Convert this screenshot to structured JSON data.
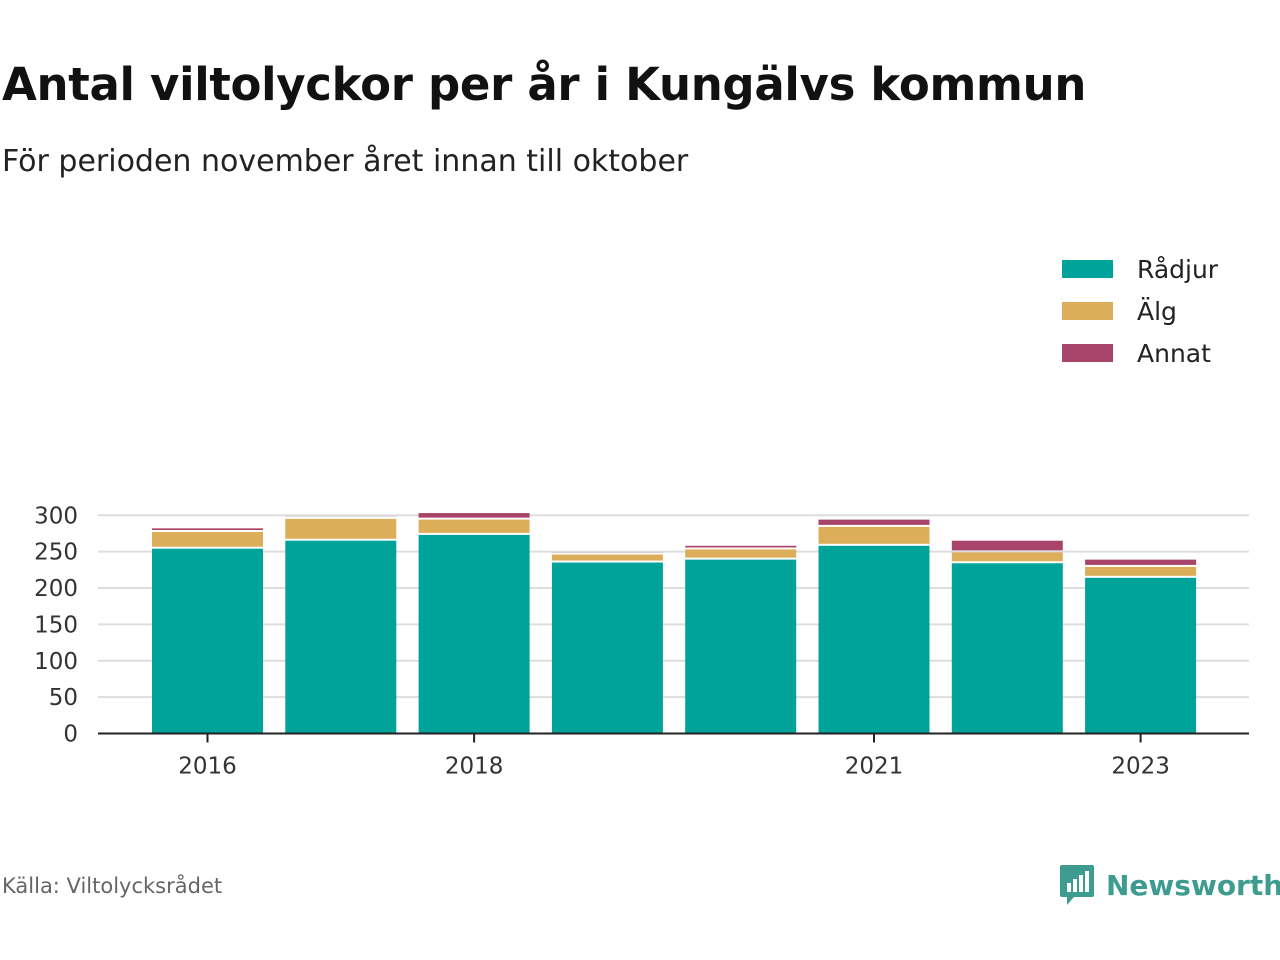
{
  "chart_data": {
    "type": "bar",
    "stacked": true,
    "title": "Antal viltolyckor per år i Kungälvs kommun",
    "subtitle": "För perioden november året innan till oktober",
    "categories": [
      "2016",
      "2017",
      "2018",
      "2019",
      "2020",
      "2021",
      "2022",
      "2023"
    ],
    "tick_labels": [
      "2016",
      "",
      "2018",
      "",
      "",
      "2021",
      "",
      "2023"
    ],
    "series": [
      {
        "name": "Rådjur",
        "color": "#00a39a",
        "values": [
          254,
          265,
          273,
          235,
          239,
          258,
          234,
          214
        ]
      },
      {
        "name": "Älg",
        "color": "#dcae5a",
        "values": [
          23,
          30,
          21,
          11,
          14,
          26,
          15,
          15
        ]
      },
      {
        "name": "Annat",
        "color": "#a8436a",
        "values": [
          5,
          3,
          9,
          3,
          5,
          10,
          16,
          10
        ]
      }
    ],
    "ylim": [
      0,
      300
    ],
    "yticks": [
      0,
      50,
      100,
      150,
      200,
      250,
      300
    ],
    "grid": true,
    "legend_position": "top-right"
  },
  "footer": {
    "source": "Källa: Viltolycksrådet",
    "brand": "Newsworthy",
    "brand_color": "#3d9b90"
  }
}
